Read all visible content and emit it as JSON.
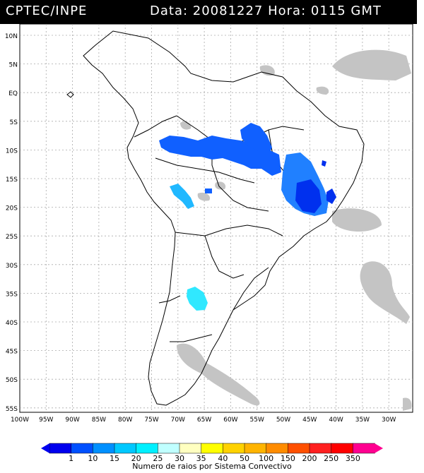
{
  "header": {
    "source": "CPTEC/INPE",
    "datetime": "Data: 20081227 Hora: 0115 GMT"
  },
  "map": {
    "lat_labels": [
      "10N",
      "5N",
      "EQ",
      "5S",
      "10S",
      "15S",
      "20S",
      "25S",
      "30S",
      "35S",
      "40S",
      "45S",
      "50S",
      "55S"
    ],
    "lon_labels": [
      "100W",
      "95W",
      "90W",
      "85W",
      "80W",
      "75W",
      "70W",
      "65W",
      "60W",
      "55W",
      "50W",
      "45W",
      "40W",
      "35W",
      "30W"
    ]
  },
  "legend": {
    "values": [
      "1",
      "10",
      "15",
      "20",
      "25",
      "30",
      "35",
      "40",
      "50",
      "100",
      "150",
      "200",
      "250",
      "350"
    ],
    "colors": [
      "#0000ee",
      "#0050ff",
      "#0090ff",
      "#00c8ff",
      "#00f0ff",
      "#c0ffff",
      "#ffffc0",
      "#ffff00",
      "#ffd200",
      "#ffb400",
      "#ff8c00",
      "#ff5000",
      "#ff2020",
      "#ff0000",
      "#ff0090"
    ],
    "caption": "Numero de raios por Sistema Convectivo"
  }
}
